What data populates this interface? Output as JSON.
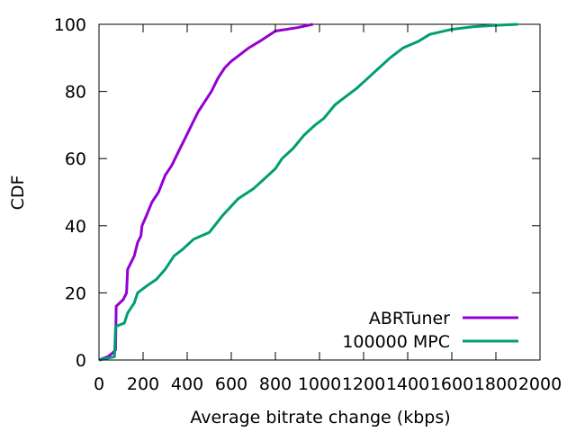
{
  "chart_data": {
    "type": "line",
    "xlabel": "Average bitrate change (kbps)",
    "ylabel": "CDF",
    "xlim": [
      0,
      2000
    ],
    "ylim": [
      0,
      100
    ],
    "x_ticks": [
      "0",
      "200",
      "400",
      "600",
      "800",
      "1000",
      "1200",
      "1400",
      "1600",
      "1800",
      "2000"
    ],
    "y_ticks": [
      "0",
      "20",
      "40",
      "60",
      "80",
      "100"
    ],
    "grid": false,
    "legend_position": "bottom-right",
    "series": [
      {
        "name": "ABRTuner",
        "color": "#9400d3",
        "points": [
          [
            0,
            0
          ],
          [
            40,
            1
          ],
          [
            60,
            2
          ],
          [
            75,
            3
          ],
          [
            78,
            16
          ],
          [
            110,
            18
          ],
          [
            125,
            20
          ],
          [
            130,
            27
          ],
          [
            160,
            31
          ],
          [
            175,
            35
          ],
          [
            190,
            37
          ],
          [
            195,
            40
          ],
          [
            215,
            43
          ],
          [
            240,
            47
          ],
          [
            270,
            50
          ],
          [
            300,
            55
          ],
          [
            330,
            58
          ],
          [
            360,
            62
          ],
          [
            390,
            66
          ],
          [
            420,
            70
          ],
          [
            450,
            74
          ],
          [
            480,
            77
          ],
          [
            510,
            80
          ],
          [
            540,
            84
          ],
          [
            570,
            87
          ],
          [
            600,
            89
          ],
          [
            620,
            90
          ],
          [
            680,
            93
          ],
          [
            730,
            95
          ],
          [
            800,
            98
          ],
          [
            900,
            99
          ],
          [
            970,
            100
          ]
        ]
      },
      {
        "name": "100000 MPC",
        "color": "#009e73",
        "points": [
          [
            0,
            0
          ],
          [
            70,
            1
          ],
          [
            75,
            10
          ],
          [
            115,
            11
          ],
          [
            130,
            14
          ],
          [
            160,
            17
          ],
          [
            175,
            20
          ],
          [
            215,
            22
          ],
          [
            260,
            24
          ],
          [
            300,
            27
          ],
          [
            340,
            31
          ],
          [
            380,
            33
          ],
          [
            430,
            36
          ],
          [
            500,
            38
          ],
          [
            560,
            43
          ],
          [
            630,
            48
          ],
          [
            700,
            51
          ],
          [
            750,
            54
          ],
          [
            800,
            57
          ],
          [
            830,
            60
          ],
          [
            880,
            63
          ],
          [
            930,
            67
          ],
          [
            980,
            70
          ],
          [
            1020,
            72
          ],
          [
            1070,
            76
          ],
          [
            1130,
            79
          ],
          [
            1170,
            81
          ],
          [
            1220,
            84
          ],
          [
            1270,
            87
          ],
          [
            1320,
            90
          ],
          [
            1380,
            93
          ],
          [
            1450,
            95
          ],
          [
            1500,
            97
          ],
          [
            1600,
            98.5
          ],
          [
            1700,
            99.3
          ],
          [
            1800,
            99.7
          ],
          [
            1900,
            100
          ]
        ]
      }
    ]
  }
}
